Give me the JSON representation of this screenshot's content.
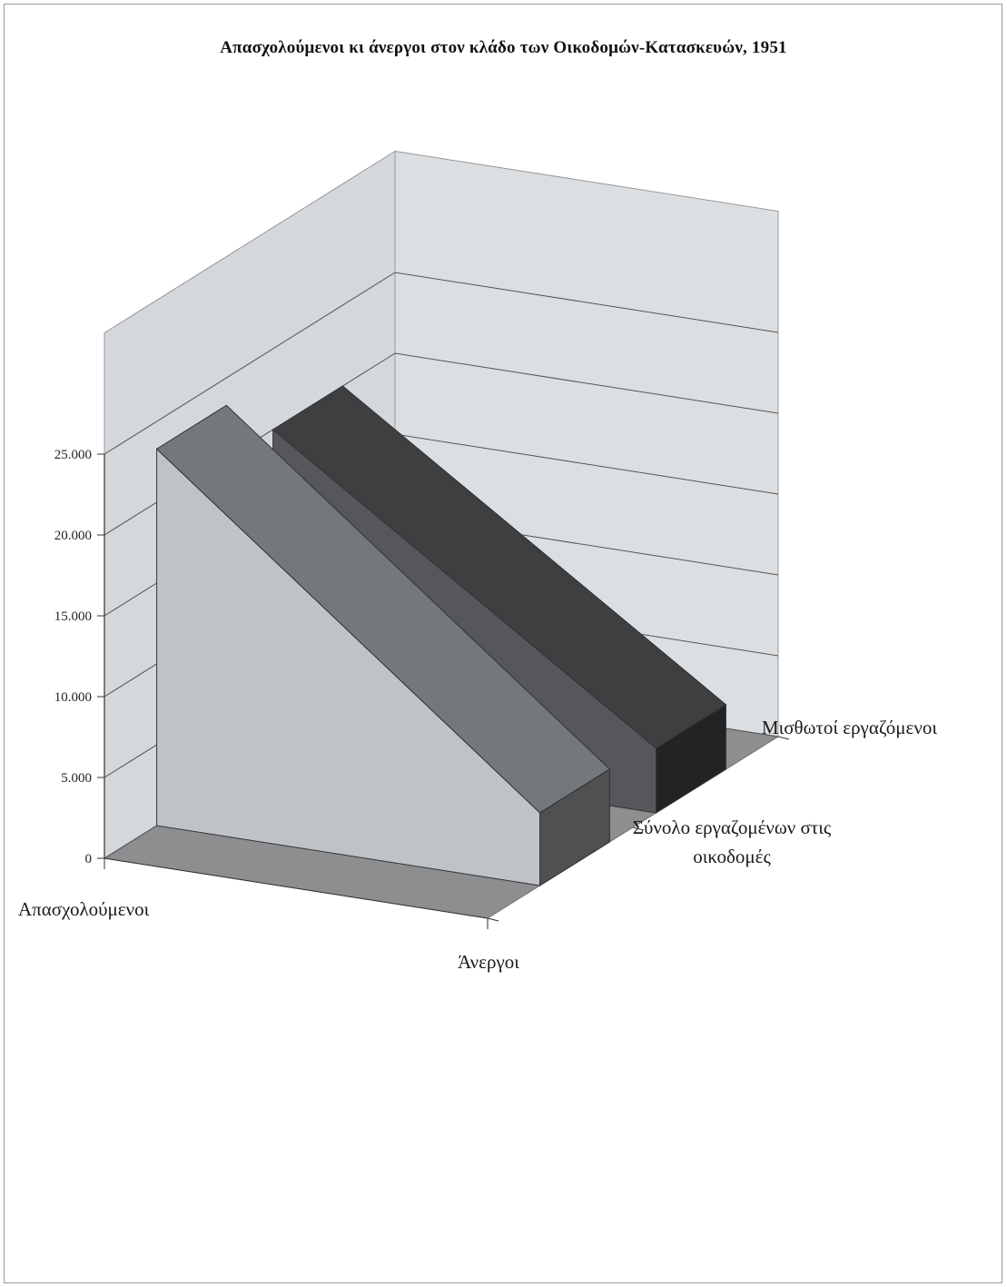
{
  "chart_data": {
    "type": "bar",
    "variant": "3d-area-ribbons",
    "title": "Απασχολούμενοι κι άνεργοι στον κλάδο των Οικοδομών-Κατασκευών, 1951",
    "categories": [
      "Απασχολούμενοι",
      "Άνεργοι"
    ],
    "series": [
      {
        "name": "Σύνολο εργαζομένων στις οικοδομές",
        "values": [
          23300,
          4500
        ],
        "color": "#b4b8bc"
      },
      {
        "name": "Μισθωτοί εργαζόμενοι",
        "values": [
          20000,
          4000
        ],
        "color": "#4a4c4e"
      }
    ],
    "series_labels": [
      "Σύνολο εργαζομένων στις οικοδομές",
      "Μισθωτοί εργαζόμενοι"
    ],
    "yticks": [
      "0",
      "5.000",
      "10.000",
      "15.000",
      "20.000",
      "25.000"
    ],
    "ylim": [
      0,
      25000
    ],
    "grid": true,
    "wall_color": "#d4d8dc",
    "floor_color": "#8c8e90"
  }
}
